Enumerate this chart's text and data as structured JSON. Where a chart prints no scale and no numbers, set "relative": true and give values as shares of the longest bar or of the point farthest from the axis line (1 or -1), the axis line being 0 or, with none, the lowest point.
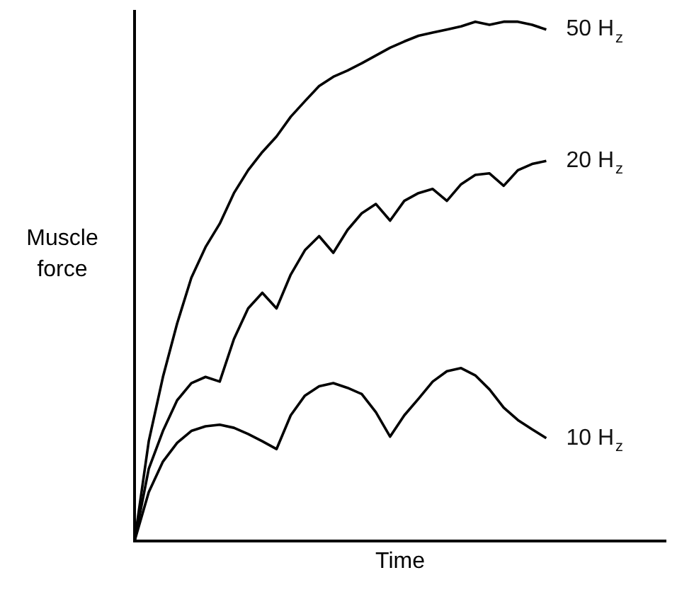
{
  "chart_data": {
    "type": "line",
    "relative": true,
    "xlabel": "Time",
    "ylabel": "Muscle force",
    "grid": false,
    "legend": false,
    "tick_labels": false,
    "marker": "none",
    "line_style": "solid",
    "categories": [
      null,
      null,
      null,
      null,
      null,
      null,
      null,
      null,
      null,
      null,
      null,
      null,
      null,
      null,
      null,
      null,
      null,
      null,
      null,
      null,
      null,
      null,
      null,
      null,
      null,
      null,
      null,
      null,
      null,
      null
    ],
    "series": [
      {
        "name": "50 H$_{z}$",
        "color": "#000000",
        "values": [
          0,
          0.192,
          0.316,
          0.419,
          0.507,
          0.566,
          0.611,
          0.67,
          0.714,
          0.749,
          0.779,
          0.817,
          0.847,
          0.876,
          0.894,
          0.906,
          0.92,
          0.935,
          0.95,
          0.962,
          0.973,
          0.979,
          0.985,
          0.991,
          1,
          0.994,
          1,
          1,
          0.994,
          0.985
        ]
      },
      {
        "name": "20 H$_{z}$",
        "color": "#000000",
        "values": [
          0,
          0.139,
          0.212,
          0.271,
          0.304,
          0.316,
          0.307,
          0.389,
          0.448,
          0.478,
          0.448,
          0.513,
          0.56,
          0.587,
          0.555,
          0.599,
          0.631,
          0.649,
          0.617,
          0.655,
          0.67,
          0.678,
          0.655,
          0.687,
          0.705,
          0.708,
          0.684,
          0.714,
          0.726,
          0.732
        ]
      },
      {
        "name": "10 H$_{z}$",
        "color": "#000000",
        "values": [
          0,
          0.094,
          0.153,
          0.189,
          0.212,
          0.221,
          0.224,
          0.218,
          0.206,
          0.192,
          0.177,
          0.242,
          0.28,
          0.298,
          0.304,
          0.295,
          0.283,
          0.248,
          0.201,
          0.242,
          0.274,
          0.307,
          0.327,
          0.333,
          0.319,
          0.292,
          0.257,
          0.233,
          0.215,
          0.198
        ]
      }
    ]
  }
}
